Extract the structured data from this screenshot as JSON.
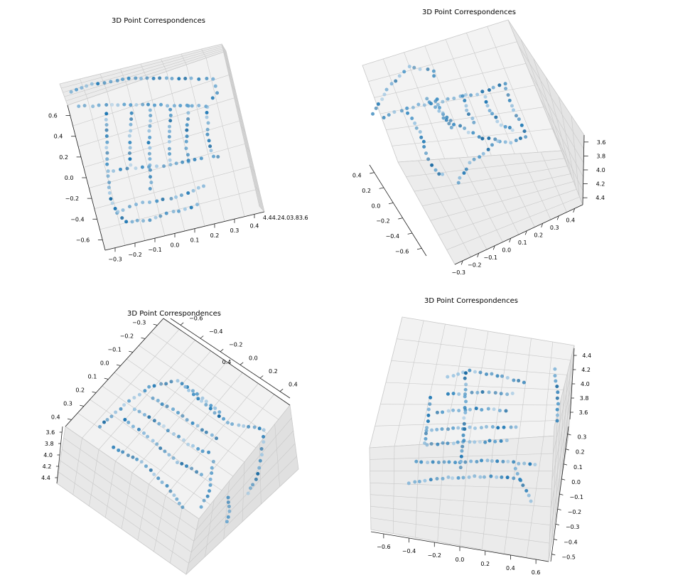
{
  "figure": {
    "title": "3D Point Correspondences"
  },
  "chart_data": [
    {
      "type": "scatter",
      "projection": "3d",
      "title": "3D Point Correspondences",
      "xlabel": "",
      "ylabel": "",
      "zlabel": "",
      "grid": true,
      "marker_color": "#1f77b4",
      "x_ticks": [
        "−0.3",
        "−0.2",
        "−0.1",
        "0.0",
        "0.1",
        "0.2",
        "0.3",
        "0.4"
      ],
      "y_ticks": [
        "−0.6",
        "−0.4",
        "−0.2",
        "0.0",
        "0.2",
        "0.4",
        "0.6"
      ],
      "z_ticks": [
        "4.4",
        "4.2",
        "4.0",
        "3.8",
        "3.6"
      ],
      "xlim": [
        -0.35,
        0.45
      ],
      "ylim": [
        -0.65,
        0.65
      ],
      "zlim": [
        3.5,
        4.5
      ]
    },
    {
      "type": "scatter",
      "projection": "3d",
      "title": "3D Point Correspondences",
      "xlabel": "",
      "ylabel": "",
      "zlabel": "",
      "grid": true,
      "marker_color": "#1f77b4",
      "x_ticks": [
        "−0.3",
        "−0.2",
        "−0.1",
        "0.0",
        "0.1",
        "0.2",
        "0.3",
        "0.4"
      ],
      "y_ticks": [
        "0.4",
        "0.2",
        "0.0",
        "−0.2",
        "−0.4",
        "−0.6"
      ],
      "z_ticks": [
        "3.6",
        "3.8",
        "4.0",
        "4.2",
        "4.4"
      ],
      "xlim": [
        -0.35,
        0.45
      ],
      "ylim": [
        -0.65,
        0.45
      ],
      "zlim": [
        3.5,
        4.5
      ]
    },
    {
      "type": "scatter",
      "projection": "3d",
      "title": "3D Point Correspondences",
      "xlabel": "",
      "ylabel": "",
      "zlabel": "",
      "grid": true,
      "marker_color": "#1f77b4",
      "x_ticks": [
        "0.4",
        "0.3",
        "0.2",
        "0.1",
        "0.0",
        "−0.1",
        "−0.2",
        "−0.3"
      ],
      "y_ticks": [
        "−0.6",
        "−0.4",
        "−0.2",
        "0.0",
        "0.2",
        "0.4"
      ],
      "z_ticks": [
        "3.6",
        "3.8",
        "4.0",
        "4.2",
        "4.4"
      ],
      "xlim": [
        -0.35,
        0.45
      ],
      "ylim": [
        -0.65,
        0.45
      ],
      "zlim": [
        3.5,
        4.5
      ]
    },
    {
      "type": "scatter",
      "projection": "3d",
      "title": "3D Point Correspondences",
      "xlabel": "",
      "ylabel": "",
      "zlabel": "",
      "grid": true,
      "marker_color": "#1f77b4",
      "x_ticks": [
        "−0.6",
        "−0.4",
        "−0.2",
        "0.0",
        "0.2",
        "0.4",
        "0.6"
      ],
      "y_ticks": [
        "0.3",
        "0.2",
        "0.1",
        "0.0",
        "−0.1",
        "−0.2",
        "−0.3",
        "−0.4",
        "−0.5"
      ],
      "z_ticks": [
        "4.4",
        "4.2",
        "4.0",
        "3.8",
        "3.6"
      ],
      "xlim": [
        -0.65,
        0.65
      ],
      "ylim": [
        -0.55,
        0.35
      ],
      "zlim": [
        3.5,
        4.5
      ]
    }
  ]
}
